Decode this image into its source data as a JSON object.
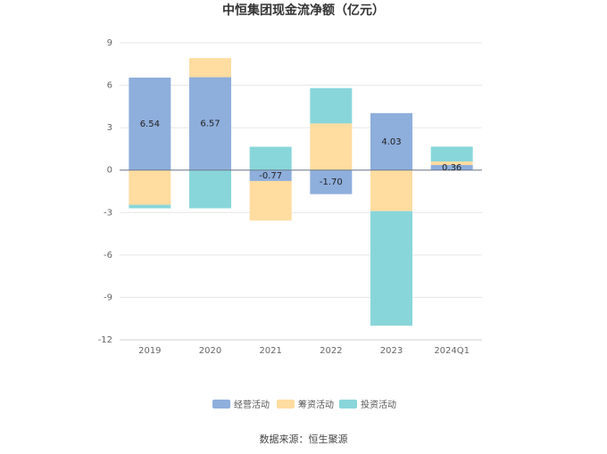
{
  "chart_data": {
    "type": "bar",
    "stacked": true,
    "title": "中恒集团现金流净额（亿元）",
    "categories": [
      "2019",
      "2020",
      "2021",
      "2022",
      "2023",
      "2024Q1"
    ],
    "series": [
      {
        "name": "经营活动",
        "color": "#8eaedc",
        "values": [
          6.54,
          6.57,
          -0.77,
          -1.7,
          4.03,
          0.36
        ],
        "labels": [
          "6.54",
          "6.57",
          "-0.77",
          "-1.70",
          "4.03",
          "0.36"
        ]
      },
      {
        "name": "筹资活动",
        "color": "#ffdca0",
        "values": [
          -2.45,
          1.35,
          -2.8,
          3.3,
          -2.9,
          0.25
        ]
      },
      {
        "name": "投资活动",
        "color": "#88d6da",
        "values": [
          -0.25,
          -2.7,
          1.65,
          2.5,
          -8.1,
          1.05
        ]
      }
    ],
    "yticks": [
      "9",
      "6",
      "3",
      "0",
      "-3",
      "-6",
      "-9",
      "-12"
    ],
    "ylim": [
      -12,
      9
    ],
    "grid": true,
    "legend_position": "bottom",
    "source": "数据来源：恒生聚源"
  }
}
